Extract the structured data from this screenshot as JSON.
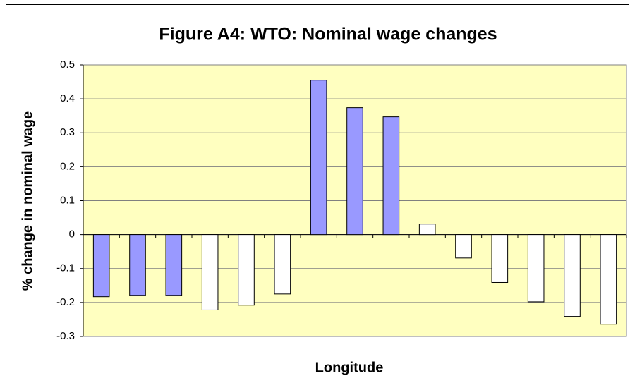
{
  "chart_data": {
    "type": "bar",
    "title": "Figure A4: WTO: Nominal wage changes",
    "x_label": "Longitude",
    "y_label": "% change in nominal wage",
    "categories": [
      null,
      null,
      null,
      null,
      null,
      null,
      null,
      null,
      null,
      null,
      null,
      null,
      null,
      null,
      null
    ],
    "values": [
      -0.183,
      -0.179,
      -0.179,
      -0.222,
      -0.208,
      -0.175,
      0.455,
      0.374,
      0.347,
      0.031,
      -0.069,
      -0.141,
      -0.198,
      -0.241,
      -0.264
    ],
    "colors": [
      "#9999ff",
      "#9999ff",
      "#9999ff",
      "#ffffff",
      "#ffffff",
      "#ffffff",
      "#9999ff",
      "#9999ff",
      "#9999ff",
      "#ffffff",
      "#ffffff",
      "#ffffff",
      "#ffffff",
      "#ffffff",
      "#ffffff"
    ],
    "ylim": [
      -0.3,
      0.5
    ],
    "yticks": [
      -0.3,
      -0.2,
      -0.1,
      0,
      0.1,
      0.2,
      0.3,
      0.4,
      0.5
    ],
    "grid": true,
    "plot_background": "#ffffc0"
  }
}
